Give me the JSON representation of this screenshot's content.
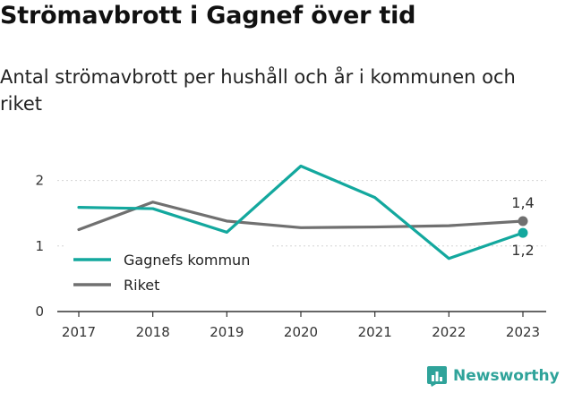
{
  "title": "Strömavbrott i Gagnef över tid",
  "subtitle": "Antal strömavbrott per hushåll och år i kommunen och riket",
  "brand": {
    "name": "Newsworthy",
    "icon": "newsworthy-logo-icon",
    "color": "#2fa39a"
  },
  "chart_data": {
    "type": "line",
    "x": [
      "2017",
      "2018",
      "2019",
      "2020",
      "2021",
      "2022",
      "2023"
    ],
    "series": [
      {
        "name": "Gagnefs kommun",
        "color": "#13a89e",
        "values": [
          1.59,
          1.57,
          1.21,
          2.22,
          1.74,
          0.81,
          1.2
        ],
        "end_label": "1,2"
      },
      {
        "name": "Riket",
        "color": "#707070",
        "values": [
          1.25,
          1.67,
          1.38,
          1.28,
          1.29,
          1.31,
          1.38
        ],
        "end_label": "1,4"
      }
    ],
    "ylim": [
      0,
      2.5
    ],
    "yticks": [
      0,
      1,
      2
    ],
    "ytick_labels": [
      "0",
      "1",
      "2"
    ],
    "grid": true,
    "legend": "bottom-left"
  }
}
